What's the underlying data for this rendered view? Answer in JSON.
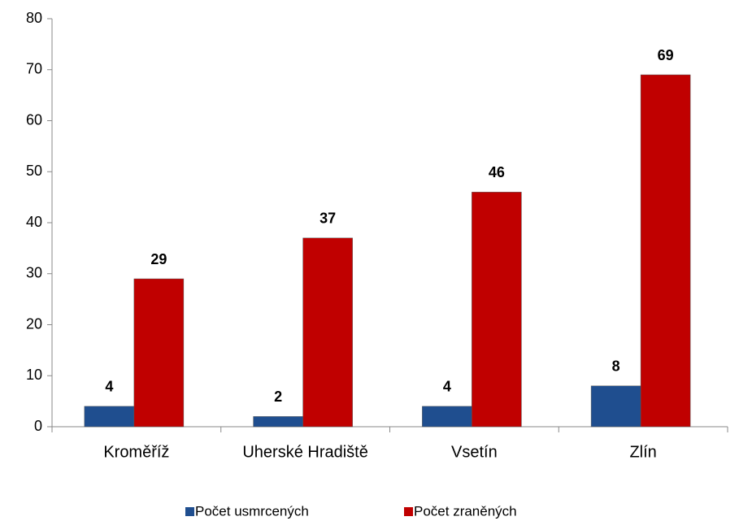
{
  "chart_data": {
    "type": "bar",
    "categories": [
      "Kroměříž",
      "Uherské Hradiště",
      "Vsetín",
      "Zlín"
    ],
    "series": [
      {
        "name": "Počet usmrcených",
        "color": "#1f4e8f",
        "values": [
          4,
          2,
          4,
          8
        ]
      },
      {
        "name": "Počet zraněných",
        "color": "#c00000",
        "values": [
          29,
          37,
          46,
          69
        ]
      }
    ],
    "ylim": [
      0,
      80
    ],
    "yticks": [
      0,
      10,
      20,
      30,
      40,
      50,
      60,
      70,
      80
    ]
  }
}
